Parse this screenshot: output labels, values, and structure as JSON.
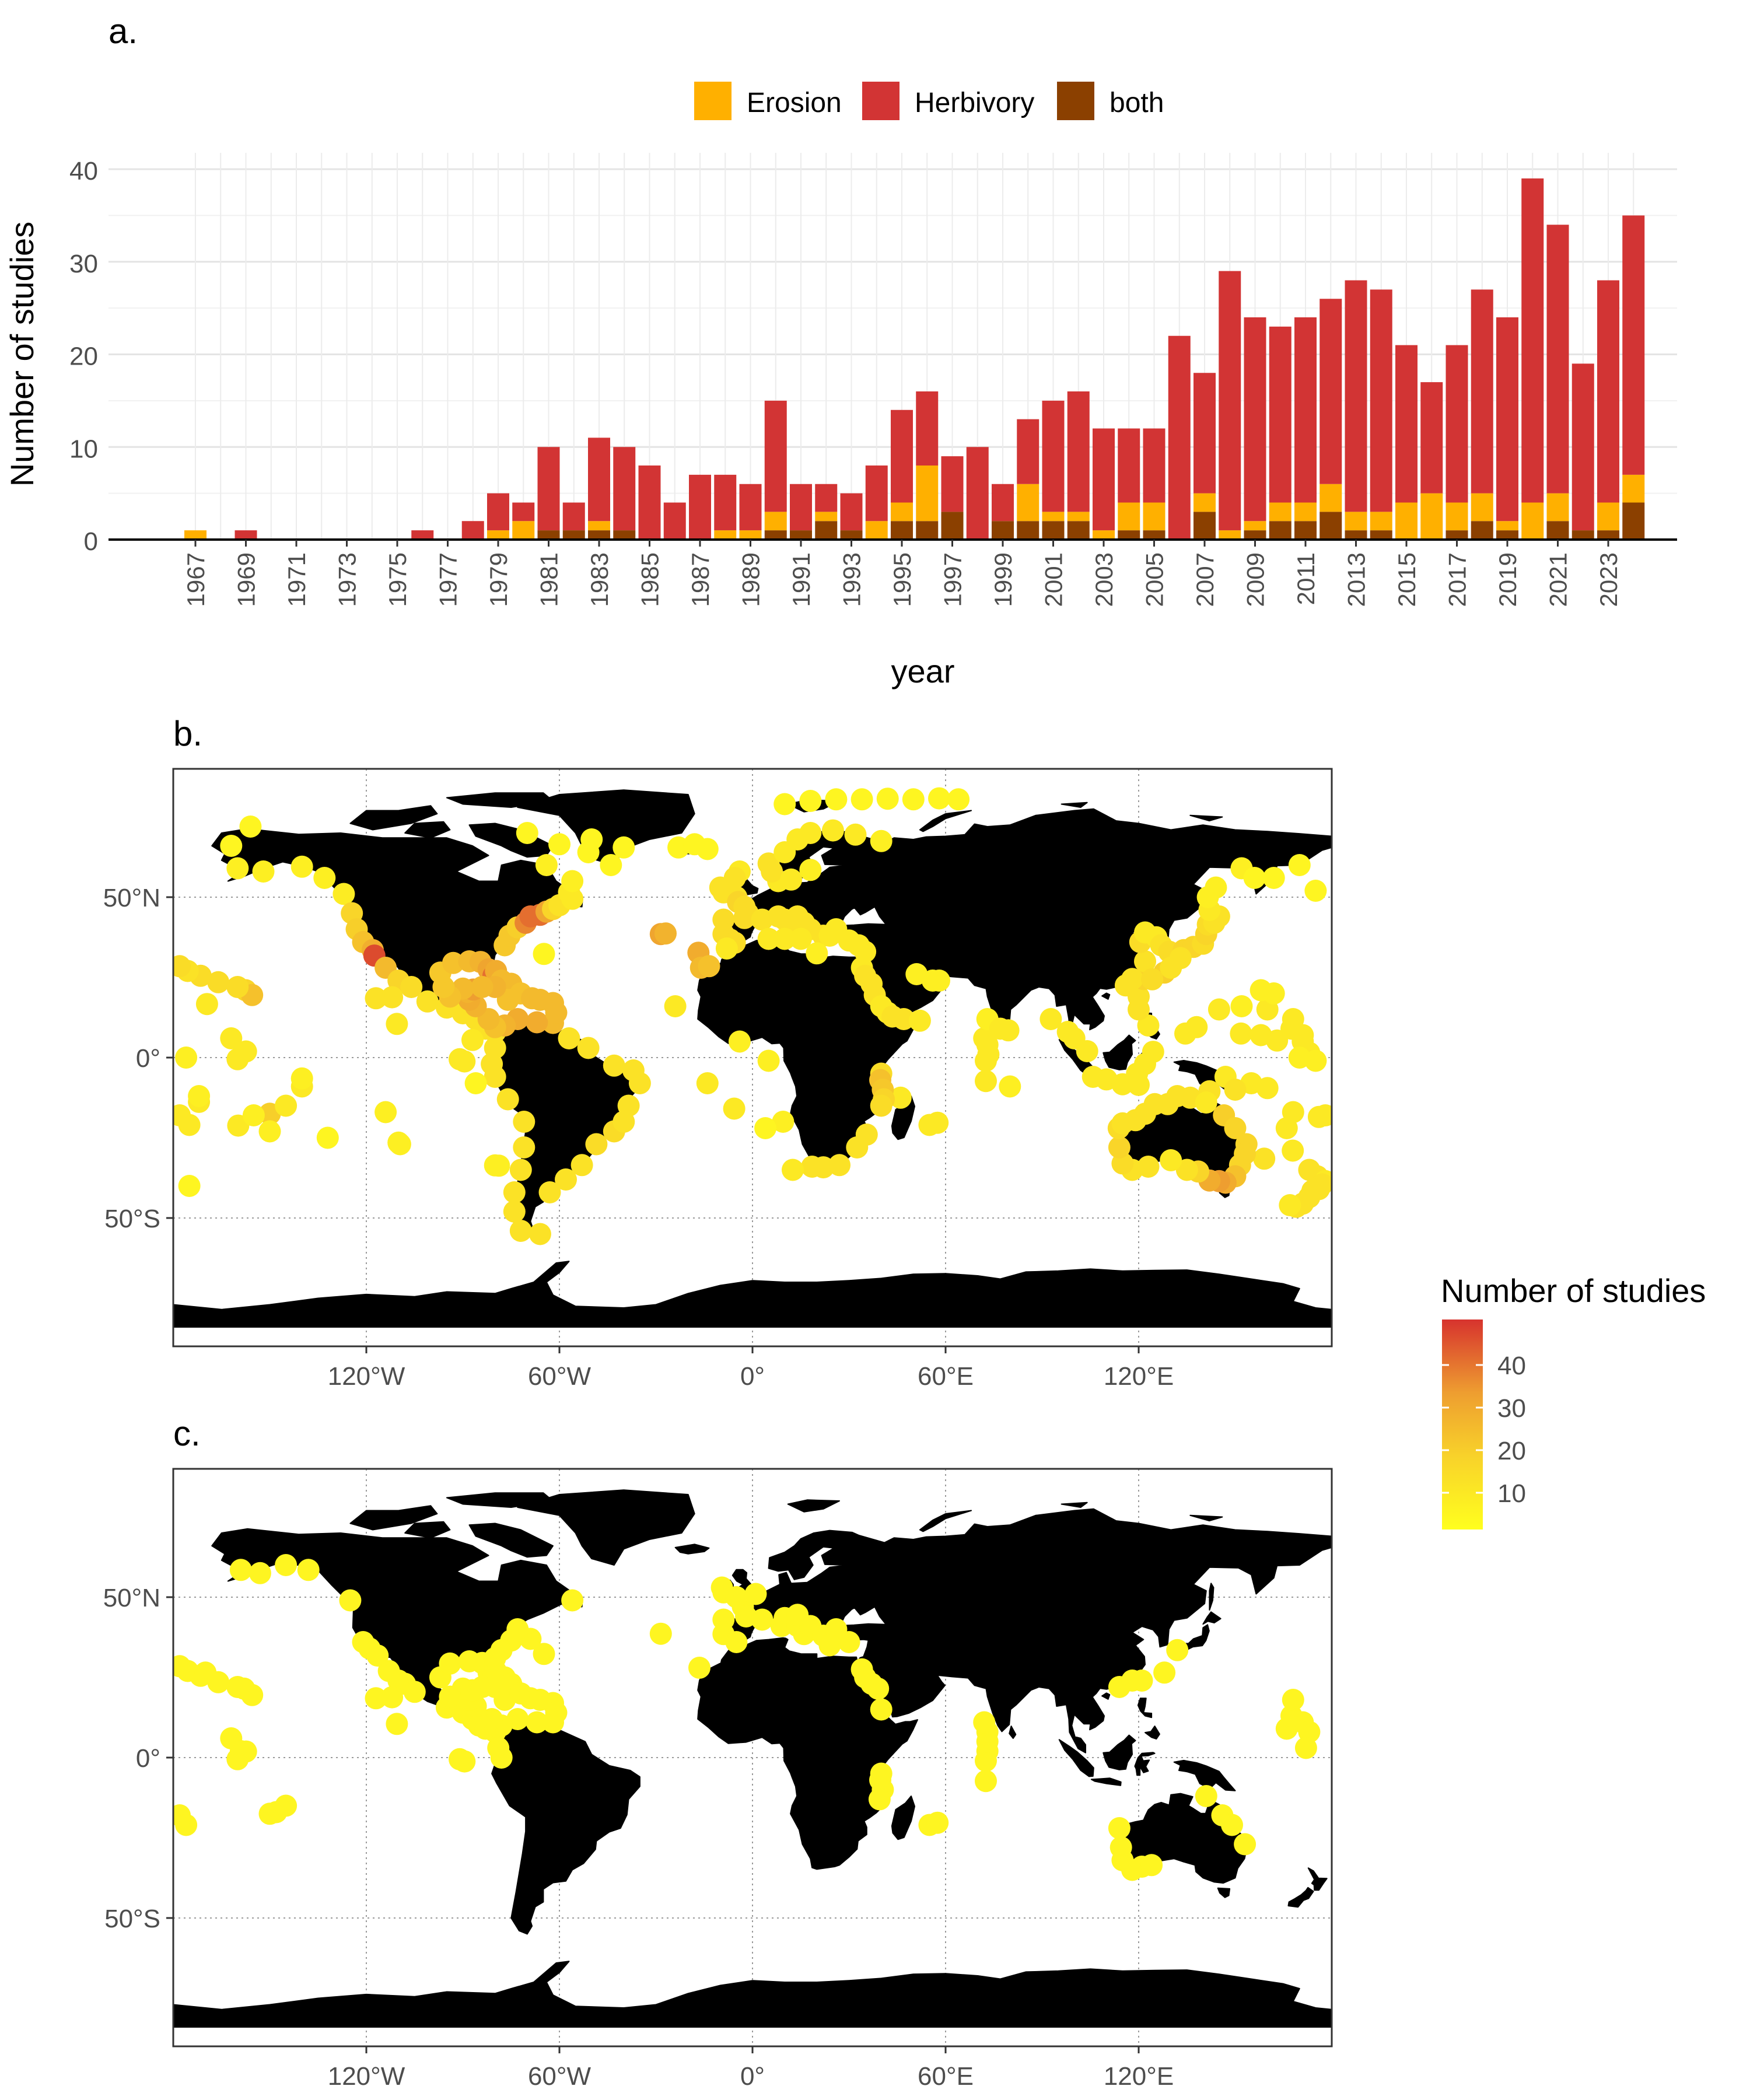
{
  "panels": {
    "a": {
      "tag": "a."
    },
    "b": {
      "tag": "b."
    },
    "c": {
      "tag": "c."
    }
  },
  "chart_data": [
    {
      "type": "bar",
      "stacked": true,
      "xlabel": "year",
      "ylabel": "Number of studies",
      "ylim": [
        0,
        40
      ],
      "yticks": [
        0,
        10,
        20,
        30,
        40
      ],
      "grid": true,
      "legend_position": "top",
      "categories": [
        1967,
        1968,
        1969,
        1970,
        1971,
        1972,
        1973,
        1974,
        1975,
        1976,
        1977,
        1978,
        1979,
        1980,
        1981,
        1982,
        1983,
        1984,
        1985,
        1986,
        1987,
        1988,
        1989,
        1990,
        1991,
        1992,
        1993,
        1994,
        1995,
        1996,
        1997,
        1998,
        1999,
        2000,
        2001,
        2002,
        2003,
        2004,
        2005,
        2006,
        2007,
        2008,
        2009,
        2010,
        2011,
        2012,
        2013,
        2014,
        2015,
        2016,
        2017,
        2018,
        2019,
        2020,
        2021,
        2022,
        2023,
        2024
      ],
      "tick_labels": [
        "1967",
        "1969",
        "1971",
        "1973",
        "1975",
        "1977",
        "1979",
        "1981",
        "1983",
        "1985",
        "1987",
        "1989",
        "1991",
        "1993",
        "1995",
        "1997",
        "1999",
        "2001",
        "2003",
        "2005",
        "2007",
        "2009",
        "2011",
        "2013",
        "2015",
        "2017",
        "2019",
        "2021",
        "2023"
      ],
      "series": [
        {
          "name": "both",
          "color": "#8B4000",
          "values": [
            0,
            0,
            0,
            0,
            0,
            0,
            0,
            0,
            0,
            0,
            0,
            0,
            0,
            0,
            1,
            1,
            1,
            1,
            0,
            0,
            0,
            0,
            0,
            1,
            1,
            2,
            1,
            0,
            2,
            2,
            3,
            0,
            2,
            2,
            2,
            2,
            0,
            1,
            1,
            0,
            3,
            0,
            1,
            2,
            2,
            3,
            1,
            1,
            0,
            0,
            1,
            2,
            1,
            0,
            2,
            1,
            1,
            4
          ]
        },
        {
          "name": "Erosion",
          "color": "#FFB000",
          "values": [
            1,
            0,
            0,
            0,
            0,
            0,
            0,
            0,
            0,
            0,
            0,
            0,
            1,
            2,
            0,
            0,
            1,
            0,
            0,
            0,
            0,
            1,
            1,
            2,
            0,
            1,
            0,
            2,
            2,
            6,
            0,
            0,
            0,
            4,
            1,
            1,
            1,
            3,
            3,
            0,
            2,
            1,
            1,
            2,
            2,
            3,
            2,
            2,
            4,
            5,
            3,
            3,
            1,
            4,
            3,
            0,
            3,
            3
          ]
        },
        {
          "name": "Herbivory",
          "color": "#D23434",
          "values": [
            0,
            0,
            1,
            0,
            0,
            0,
            0,
            0,
            0,
            1,
            0,
            2,
            4,
            2,
            9,
            3,
            9,
            9,
            8,
            4,
            7,
            6,
            5,
            12,
            5,
            3,
            4,
            6,
            10,
            8,
            6,
            10,
            4,
            7,
            12,
            13,
            11,
            8,
            8,
            22,
            13,
            28,
            22,
            19,
            20,
            20,
            25,
            24,
            17,
            12,
            17,
            22,
            22,
            35,
            29,
            18,
            24,
            28
          ]
        }
      ]
    },
    {
      "type": "map",
      "panel": "b.",
      "legend_title": "Number of studies",
      "legend_ticks": [
        10,
        20,
        30,
        40
      ],
      "color_scale": [
        "#FFFF1E",
        "#F5C42A",
        "#EE9A30",
        "#D7332E"
      ],
      "x_ticks": [
        "120°W",
        "60°W",
        "0°",
        "60°E",
        "120°E"
      ],
      "y_ticks": [
        "50°N",
        "0°",
        "50°S"
      ],
      "land_color": "#000000",
      "grid": true
    },
    {
      "type": "map",
      "panel": "c.",
      "x_ticks": [
        "120°W",
        "60°W",
        "0°",
        "60°E",
        "120°E"
      ],
      "y_ticks": [
        "50°N",
        "0°",
        "50°S"
      ],
      "land_color": "#000000",
      "grid": true
    }
  ]
}
